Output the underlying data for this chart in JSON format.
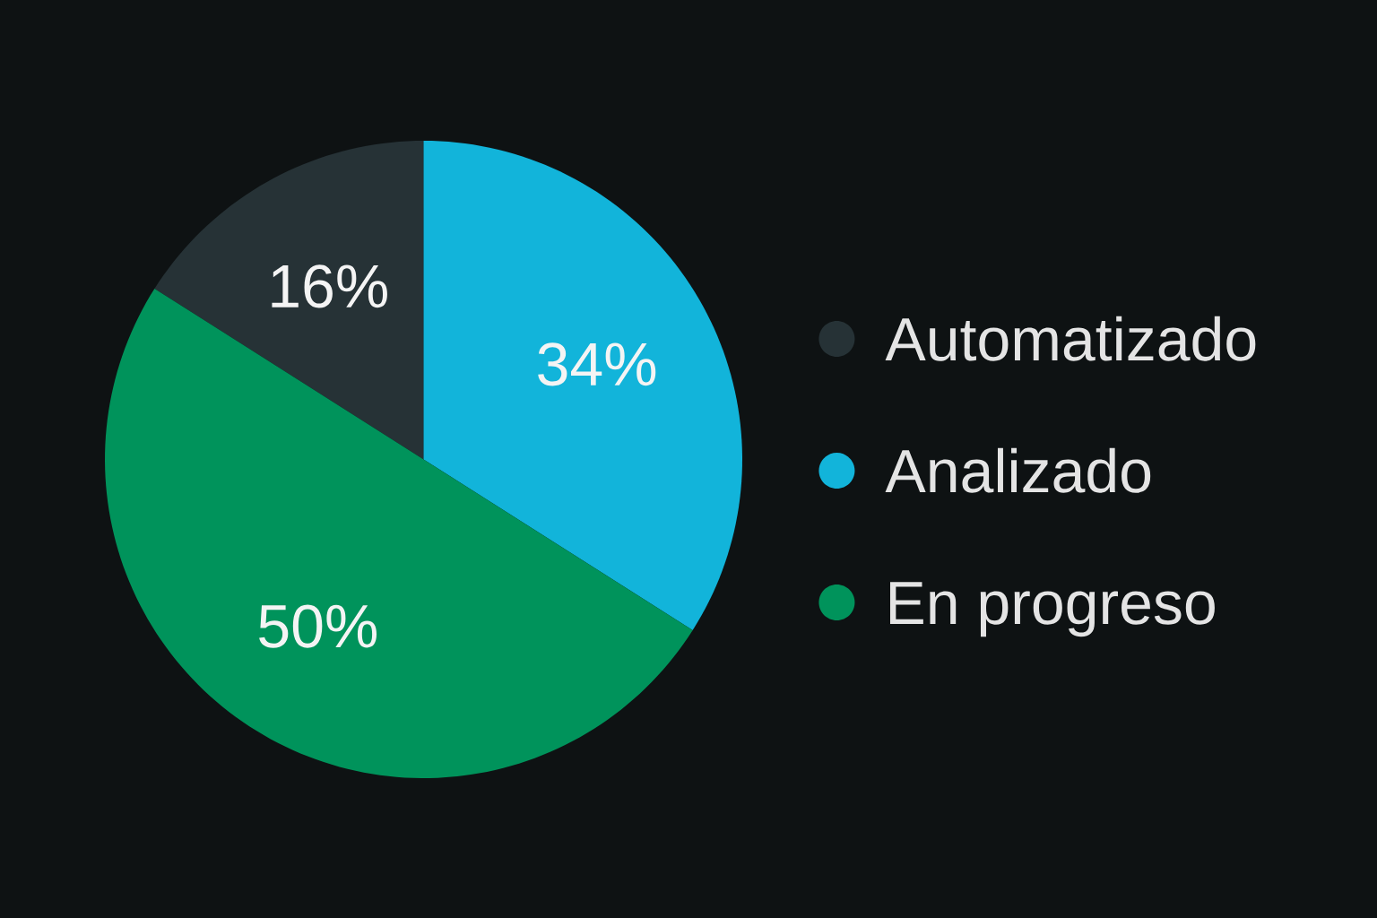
{
  "chart_data": {
    "type": "pie",
    "categories": [
      "Automatizado",
      "Analizado",
      "En progreso"
    ],
    "values": [
      16,
      34,
      50
    ],
    "colors": [
      "#263236",
      "#12B4DA",
      "#00935B"
    ],
    "value_labels": [
      "16%",
      "34%",
      "50%"
    ],
    "legend": "right"
  }
}
